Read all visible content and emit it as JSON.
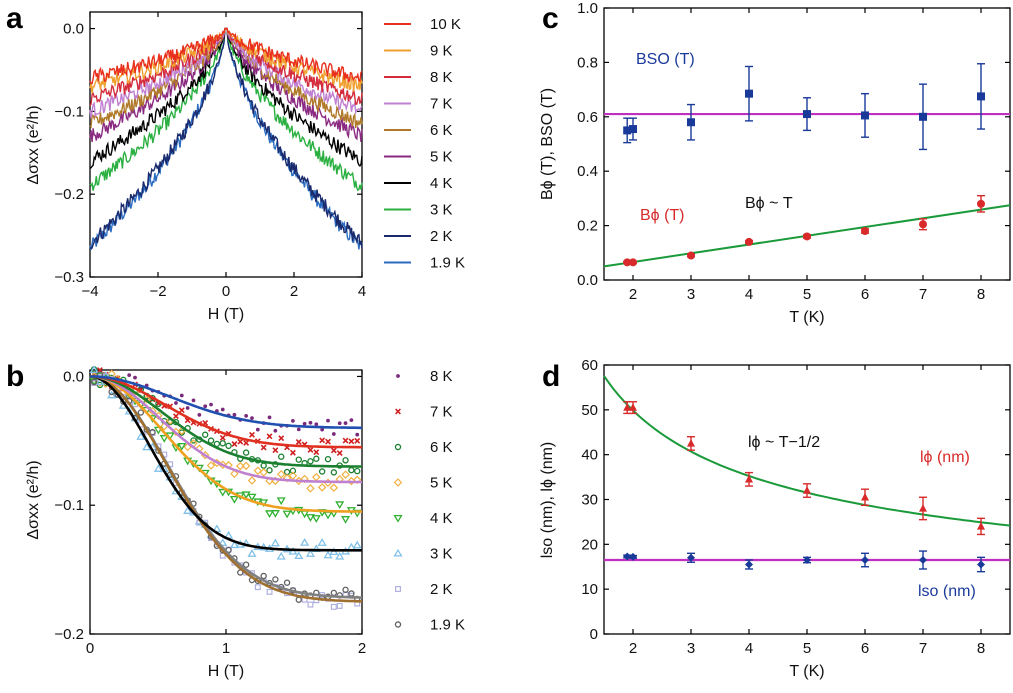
{
  "chart_data": [
    {
      "panel": "a",
      "type": "line",
      "xlabel": "H (T)",
      "ylabel": "Δσxx (e²/h)",
      "xlim": [
        -4,
        4
      ],
      "ylim": [
        -0.3,
        0.02
      ],
      "xticks": [
        "−4",
        "−2",
        "0",
        "2",
        "4"
      ],
      "yticks": [
        "0.0",
        "−0.1",
        "−0.2",
        "−0.3"
      ],
      "legend_placement": "right",
      "series": [
        {
          "name": "10 K",
          "color": "#e8301c",
          "edge": -0.06
        },
        {
          "name": "9 K",
          "color": "#f0a030",
          "edge": -0.07
        },
        {
          "name": "8 K",
          "color": "#d42c3c",
          "edge": -0.085
        },
        {
          "name": "7 K",
          "color": "#c080d0",
          "edge": -0.1
        },
        {
          "name": "6 K",
          "color": "#b07a2a",
          "edge": -0.115
        },
        {
          "name": "5 K",
          "color": "#8a2a80",
          "edge": -0.13
        },
        {
          "name": "4 K",
          "color": "#000000",
          "edge": -0.16
        },
        {
          "name": "3 K",
          "color": "#2ab040",
          "edge": -0.19
        },
        {
          "name": "2 K",
          "color": "#1a2a6c",
          "edge": -0.26
        },
        {
          "name": "1.9 K",
          "color": "#2a6cc0",
          "edge": -0.265
        }
      ]
    },
    {
      "panel": "b",
      "type": "scatter",
      "xlabel": "H (T)",
      "ylabel": "Δσxx (e²/h)",
      "xlim": [
        0,
        2
      ],
      "ylim": [
        -0.2,
        0.005
      ],
      "xticks": [
        "0",
        "1",
        "2"
      ],
      "yticks": [
        "0.0",
        "−0.1",
        "−0.2"
      ],
      "legend_placement": "right",
      "series": [
        {
          "name": "8 K",
          "marker": "dot",
          "color": "#7a2a7a",
          "fit_color": "#2050b0",
          "final": -0.04,
          "rate": 1.2
        },
        {
          "name": "7 K",
          "marker": "x",
          "color": "#d02020",
          "fit_color": "#e03020",
          "final": -0.055,
          "rate": 1.4
        },
        {
          "name": "6 K",
          "marker": "circle",
          "color": "#1a8030",
          "fit_color": "#1a8030",
          "final": -0.07,
          "rate": 1.5
        },
        {
          "name": "5 K",
          "marker": "diamond",
          "color": "#f0b040",
          "fit_color": "#c080d0",
          "final": -0.082,
          "rate": 1.6
        },
        {
          "name": "4 K",
          "marker": "triangle-down",
          "color": "#30b030",
          "fit_color": "#f0a020",
          "final": -0.105,
          "rate": 1.5
        },
        {
          "name": "3 K",
          "marker": "triangle-up",
          "color": "#80c0e8",
          "fit_color": "#000000",
          "final": -0.135,
          "rate": 2.2
        },
        {
          "name": "2 K",
          "marker": "square",
          "color": "#b0b0e0",
          "fit_color": "#a07030",
          "final": -0.175,
          "rate": 1.3
        },
        {
          "name": "1.9 K",
          "marker": "circle",
          "color": "#606060",
          "fit_color": "#808080",
          "final": -0.172,
          "rate": 1.3
        }
      ]
    },
    {
      "panel": "c",
      "type": "scatter",
      "xlabel": "T (K)",
      "ylabel": "Bϕ (T), BSO (T)",
      "xlim": [
        1.5,
        8.5
      ],
      "ylim": [
        0.0,
        1.0
      ],
      "xticks": [
        "2",
        "3",
        "4",
        "5",
        "6",
        "7",
        "8"
      ],
      "yticks": [
        "0.0",
        "0.2",
        "0.4",
        "0.6",
        "0.8",
        "1.0"
      ],
      "hline": {
        "y": 0.61,
        "color": "#c030c0"
      },
      "fit": {
        "label": "Bϕ ~ T",
        "color": "#1a9a3a",
        "x": [
          1.5,
          8.5
        ],
        "y": [
          0.05,
          0.275
        ]
      },
      "series": [
        {
          "name": "BSO (T)",
          "color": "#1a3a9a",
          "marker": "square",
          "x": [
            1.9,
            2,
            3,
            4,
            5,
            6,
            7,
            8
          ],
          "y": [
            0.55,
            0.555,
            0.58,
            0.685,
            0.61,
            0.605,
            0.6,
            0.675
          ],
          "err": [
            0.045,
            0.04,
            0.065,
            0.1,
            0.06,
            0.08,
            0.12,
            0.12
          ]
        },
        {
          "name": "Bϕ (T)",
          "color": "#d82a2a",
          "marker": "circle",
          "x": [
            1.9,
            2,
            3,
            4,
            5,
            6,
            7,
            8
          ],
          "y": [
            0.065,
            0.065,
            0.09,
            0.14,
            0.16,
            0.18,
            0.205,
            0.28
          ],
          "err": [
            0.004,
            0.004,
            0.005,
            0.005,
            0.006,
            0.008,
            0.02,
            0.03
          ]
        }
      ],
      "annotations": {
        "bso": "BSO (T)",
        "bphi": "Bϕ (T)",
        "fit": "Bϕ ~ T"
      }
    },
    {
      "panel": "d",
      "type": "scatter",
      "xlabel": "T (K)",
      "ylabel": "lso (nm), lϕ (nm)",
      "xlim": [
        1.5,
        8.5
      ],
      "ylim": [
        0,
        60
      ],
      "xticks": [
        "2",
        "3",
        "4",
        "5",
        "6",
        "7",
        "8"
      ],
      "yticks": [
        "0",
        "10",
        "20",
        "30",
        "40",
        "50",
        "60"
      ],
      "hline": {
        "y": 16.5,
        "color": "#c030c0"
      },
      "fit": {
        "label": "lϕ ~ T−1/2",
        "color": "#1a9a3a"
      },
      "series": [
        {
          "name": "lϕ (nm)",
          "color": "#d82a2a",
          "marker": "triangle-up",
          "x": [
            1.9,
            2,
            3,
            4,
            5,
            6,
            7,
            8
          ],
          "y": [
            50.5,
            50.5,
            42.5,
            34.5,
            32,
            30.5,
            28,
            24
          ],
          "err": [
            1.3,
            1.3,
            1.5,
            1.5,
            1.5,
            1.8,
            2.5,
            1.8
          ]
        },
        {
          "name": "lso (nm)",
          "color": "#1a3a9a",
          "marker": "diamond",
          "x": [
            1.9,
            2,
            3,
            4,
            5,
            6,
            7,
            8
          ],
          "y": [
            17.3,
            17.2,
            17,
            15.5,
            16.5,
            16.5,
            16.5,
            15.5
          ],
          "err": [
            0.3,
            0.3,
            1,
            1,
            0.6,
            1.5,
            2,
            1.6
          ]
        }
      ],
      "annotations": {
        "lphi": "lϕ (nm)",
        "lso": "lso (nm)",
        "fit": "lϕ ~ T−1/2"
      }
    }
  ],
  "labels": {
    "a": "a",
    "b": "b",
    "c": "c",
    "d": "d"
  }
}
